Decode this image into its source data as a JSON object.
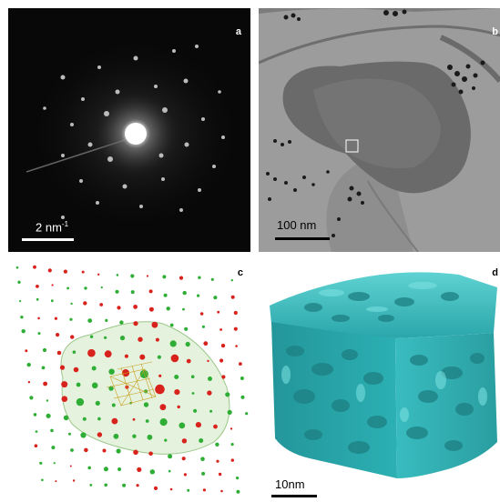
{
  "panels": {
    "a": {
      "label": "a",
      "scale_text": "2 nm",
      "scale_sup": "-1"
    },
    "b": {
      "label": "b",
      "scale_text": "100 nm"
    },
    "c": {
      "label": "c"
    },
    "d": {
      "label": "d",
      "scale_text": "10nm"
    }
  },
  "colors": {
    "diffraction_bg": "#080808",
    "tem_bg": "#9a9a9a",
    "spot_red": "#d8221c",
    "spot_green": "#2fae35",
    "envelope_green": "#cfe8c2",
    "isosurface_teal": "#2cb0b3"
  }
}
